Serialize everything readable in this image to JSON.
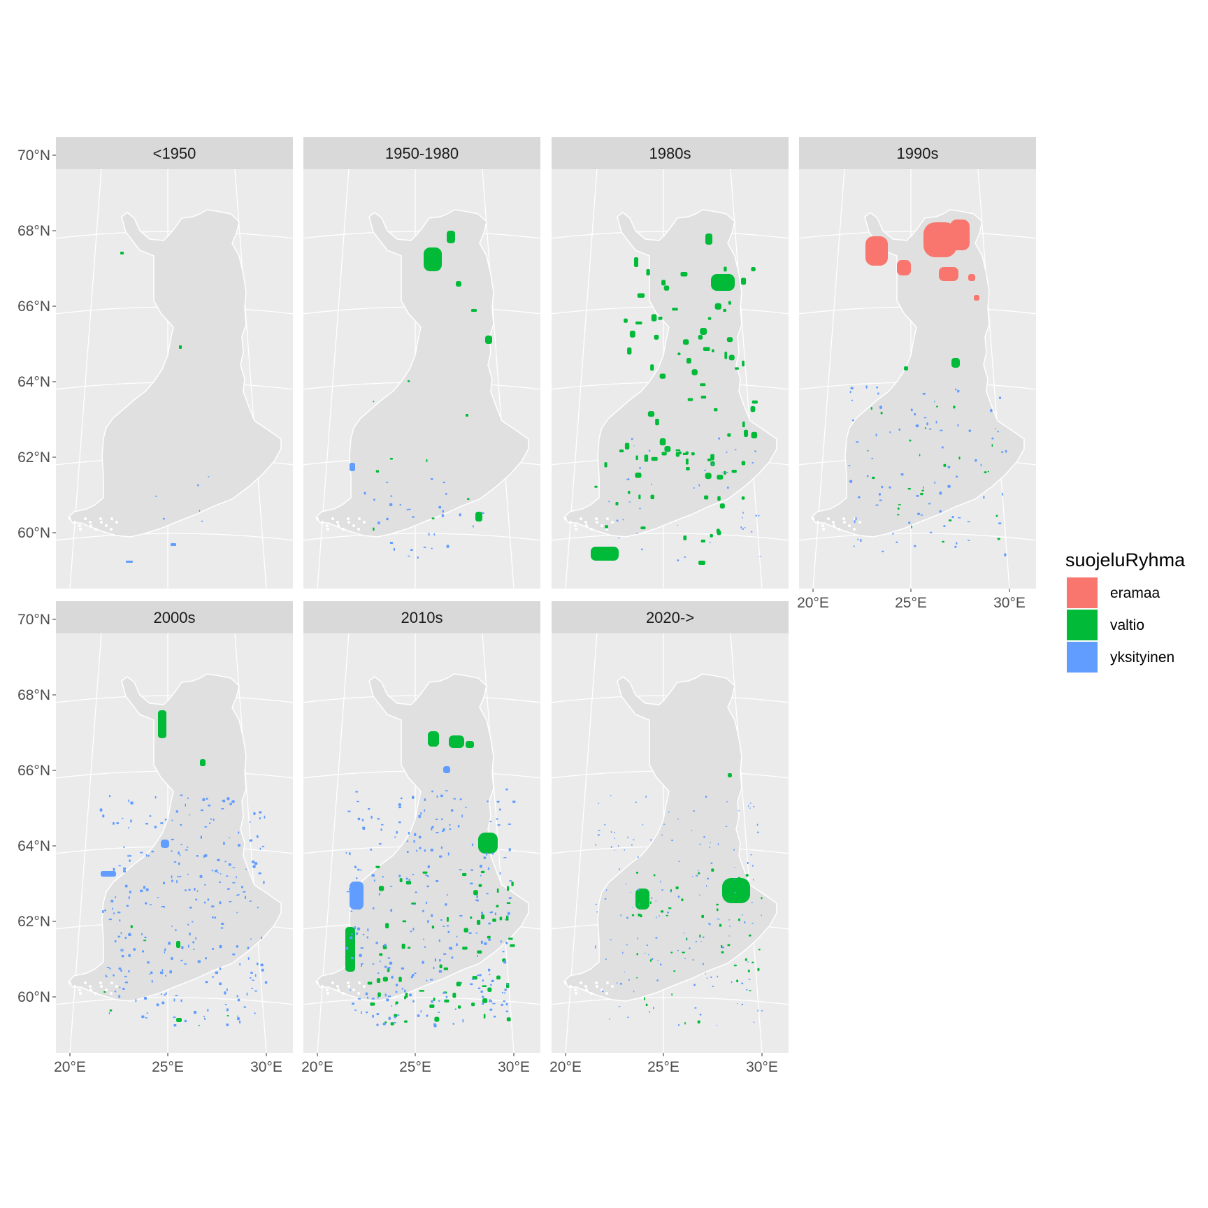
{
  "panels": [
    {
      "label": "<1950"
    },
    {
      "label": "1950-1980"
    },
    {
      "label": "1980s"
    },
    {
      "label": "1990s"
    },
    {
      "label": "2000s"
    },
    {
      "label": "2010s"
    },
    {
      "label": "2020->"
    }
  ],
  "axes": {
    "lat_ticks": [
      {
        "value": 70,
        "label": "70°N"
      },
      {
        "value": 68,
        "label": "68°N"
      },
      {
        "value": 66,
        "label": "66°N"
      },
      {
        "value": 64,
        "label": "64°N"
      },
      {
        "value": 62,
        "label": "62°N"
      },
      {
        "value": 60,
        "label": "60°N"
      }
    ],
    "lon_ticks": [
      {
        "value": 20,
        "label": "20°E"
      },
      {
        "value": 25,
        "label": "25°E"
      },
      {
        "value": 30,
        "label": "30°E"
      }
    ]
  },
  "legend": {
    "title": "suojeluRyhma",
    "items": [
      {
        "label": "eramaa",
        "color": "#F8766D"
      },
      {
        "label": "valtio",
        "color": "#00BA38"
      },
      {
        "label": "yksityinen",
        "color": "#619CFF"
      }
    ]
  },
  "colors": {
    "panel_background": "#EBEBEB",
    "strip_background": "#D9D9D9",
    "land": "#E0E0E0",
    "graticule": "#FFFFFF"
  }
}
